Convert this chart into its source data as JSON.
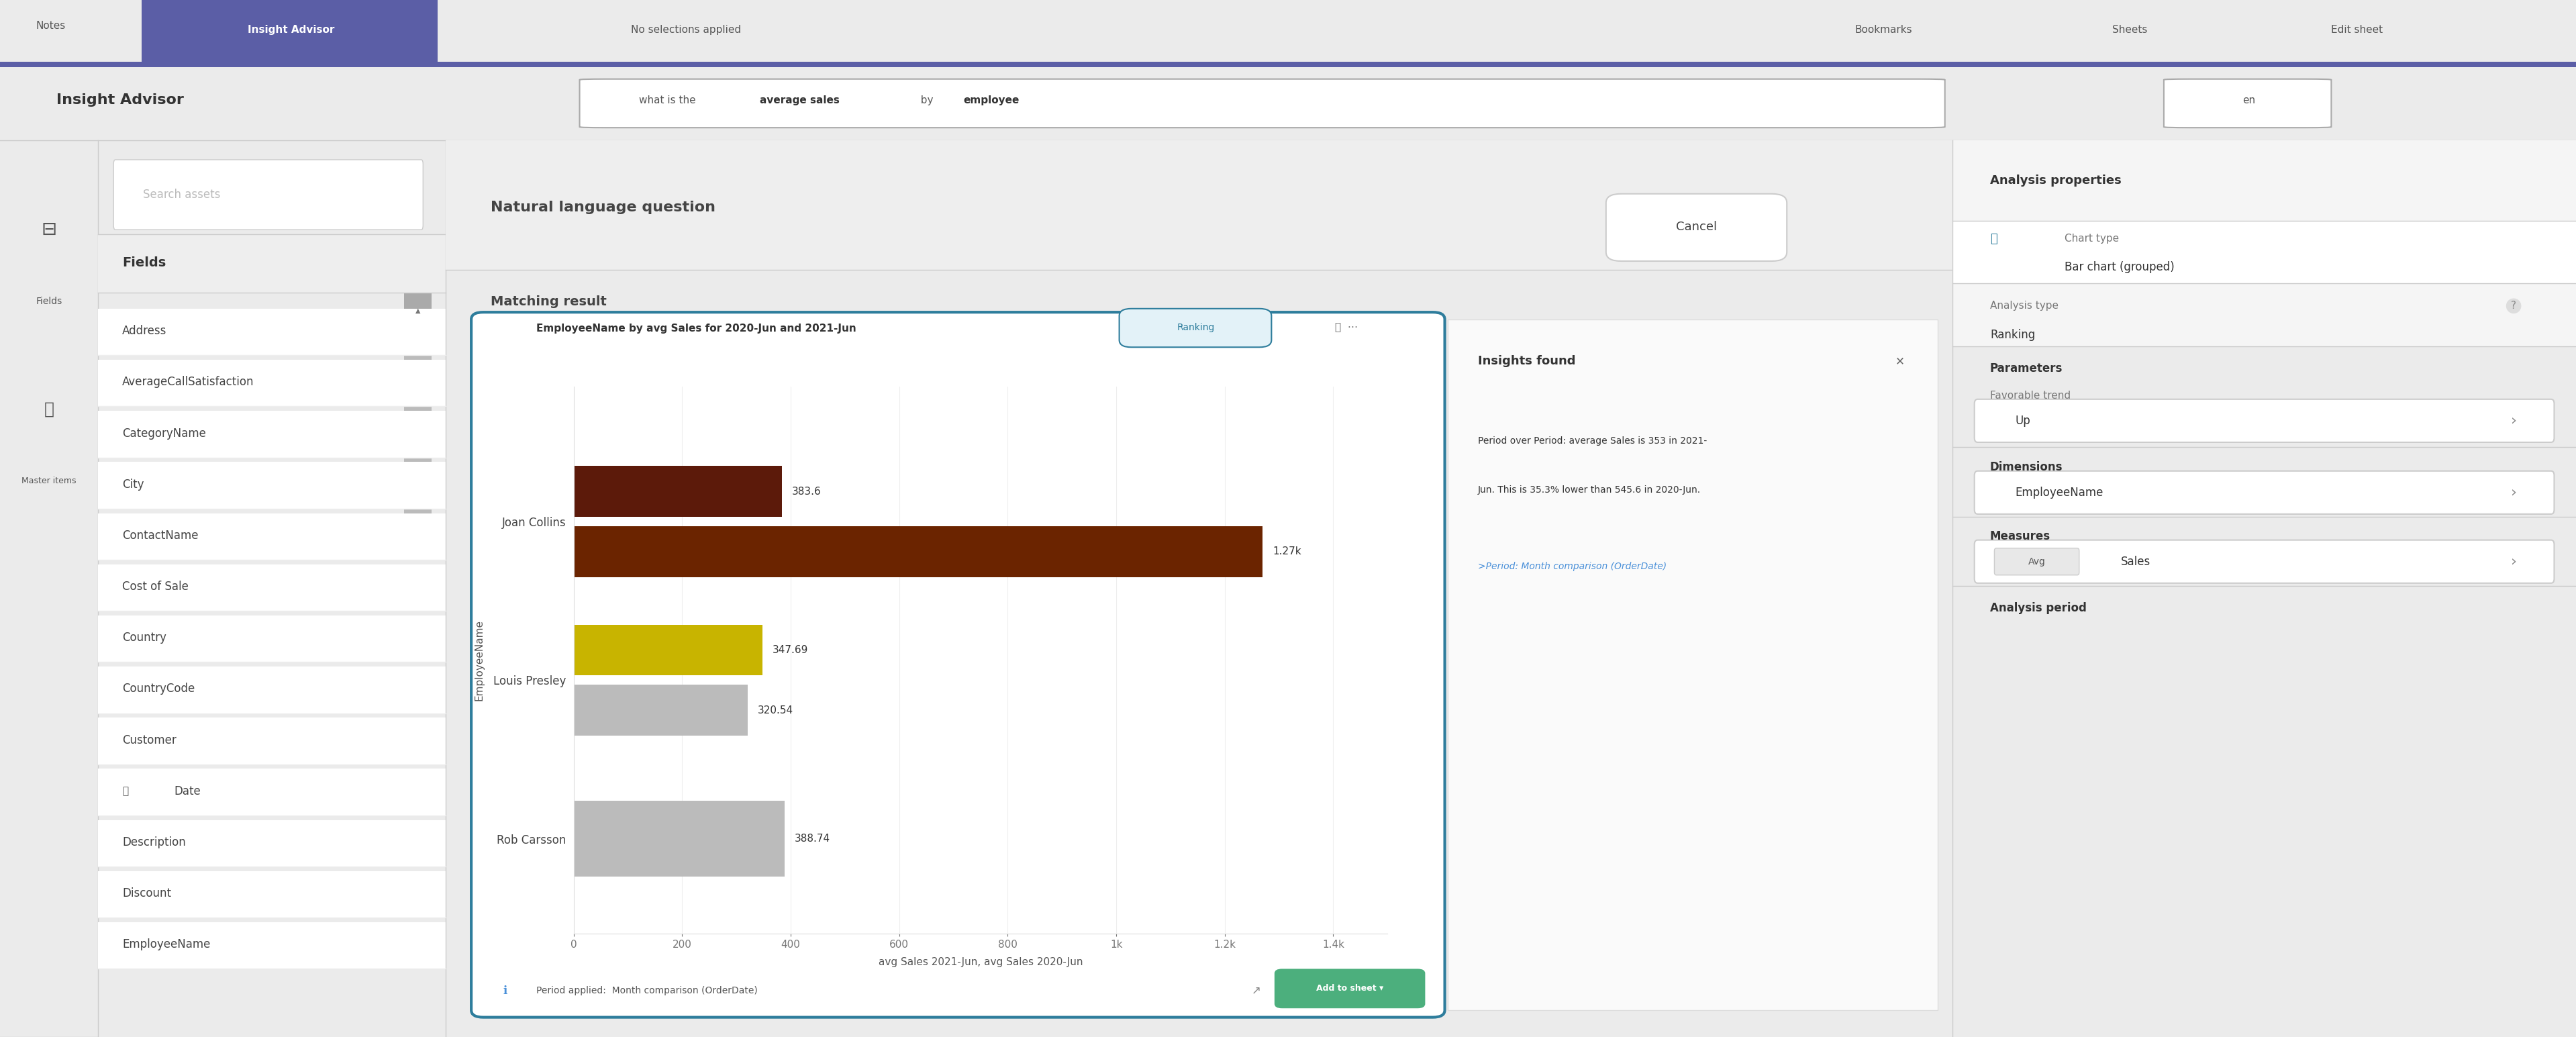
{
  "title": "EmployeeName by avg Sales for 2020-Jun and 2021-Jun",
  "ranking_badge": "Ranking",
  "employees": [
    "Joan Collins",
    "Louis Presley",
    "Rob Carsson"
  ],
  "xlabel": "avg Sales 2021-Jun, avg Sales 2020-Jun",
  "ylabel": "EmployeeName",
  "period_note": "Period applied:  Month comparison (OrderDate)",
  "insights_title": "Insights found",
  "insights_line1": "Period over Period: average Sales is 353 in 2021-",
  "insights_line2": "Jun. This is 35.3% lower than 545.6 in 2020-Jun.",
  "insights_link": ">Period: Month comparison (OrderDate)",
  "analysis_title": "Analysis properties",
  "chart_type_label": "Chart type",
  "chart_type_value": "Bar chart (grouped)",
  "analysis_type_label": "Analysis type",
  "analysis_type_value": "Ranking",
  "parameters_label": "Parameters",
  "favorable_trend_label": "Favorable trend",
  "favorable_trend_value": "Up",
  "dimensions_label": "Dimensions",
  "dimension_value": "EmployeeName",
  "measures_label": "Measures",
  "measure_avg": "Avg",
  "measure_sales": "Sales",
  "analysis_period_label": "Analysis period",
  "xticks": [
    0,
    200,
    400,
    600,
    800,
    1000,
    1200,
    1400
  ],
  "xtick_labels": [
    "0",
    "200",
    "400",
    "600",
    "800",
    "1k",
    "1.2k",
    "1.4k"
  ],
  "xlim_max": 1500,
  "bar_height": 0.32,
  "joan_2021_val": 383.6,
  "joan_2020_val": 1270,
  "louis_2021_val": 347.69,
  "louis_2020_val": 320.54,
  "rob_2020_val": 388.74,
  "label_joan_2021": "383.6",
  "label_joan_2020": "1.27k",
  "label_louis_2021": "347.69",
  "label_louis_2020": "320.54",
  "label_rob_2020": "388.74",
  "col_dark_red": "#5C1A0A",
  "col_yellow_green": "#8B8B00",
  "col_gray_bar": "#AAAAAA",
  "col_joan_2020": "#6B2400",
  "top_nav_bg": "#5C5C8A",
  "top_nav_active": "#6666AA",
  "sidebar_bg": "#F5F5F5",
  "main_bg": "#EBEBEB",
  "right_panel_bg": "#F5F5F5",
  "card_border": "#2E7D9C",
  "fields_list": [
    "Address",
    "AverageCallSatisfaction",
    "CategoryName",
    "City",
    "ContactName",
    "Cost of Sale",
    "Country",
    "CountryCode",
    "Customer",
    "Date",
    "Description",
    "Discount",
    "EmployeeName"
  ],
  "nav_title": "Insight Advisor",
  "nav_notes": "Notes",
  "nav_no_sel": "No selections applied",
  "nav_bookmarks": "Bookmarks",
  "nav_sheets": "Sheets",
  "nav_edit": "Edit sheet",
  "left_title": "Insight Advisor",
  "left_search": "Search assets",
  "left_fields_header": "Fields",
  "nlq_header": "Natural language question",
  "cancel_btn": "Cancel",
  "matching_result": "Matching result",
  "add_to_sheet": "Add to sheet"
}
